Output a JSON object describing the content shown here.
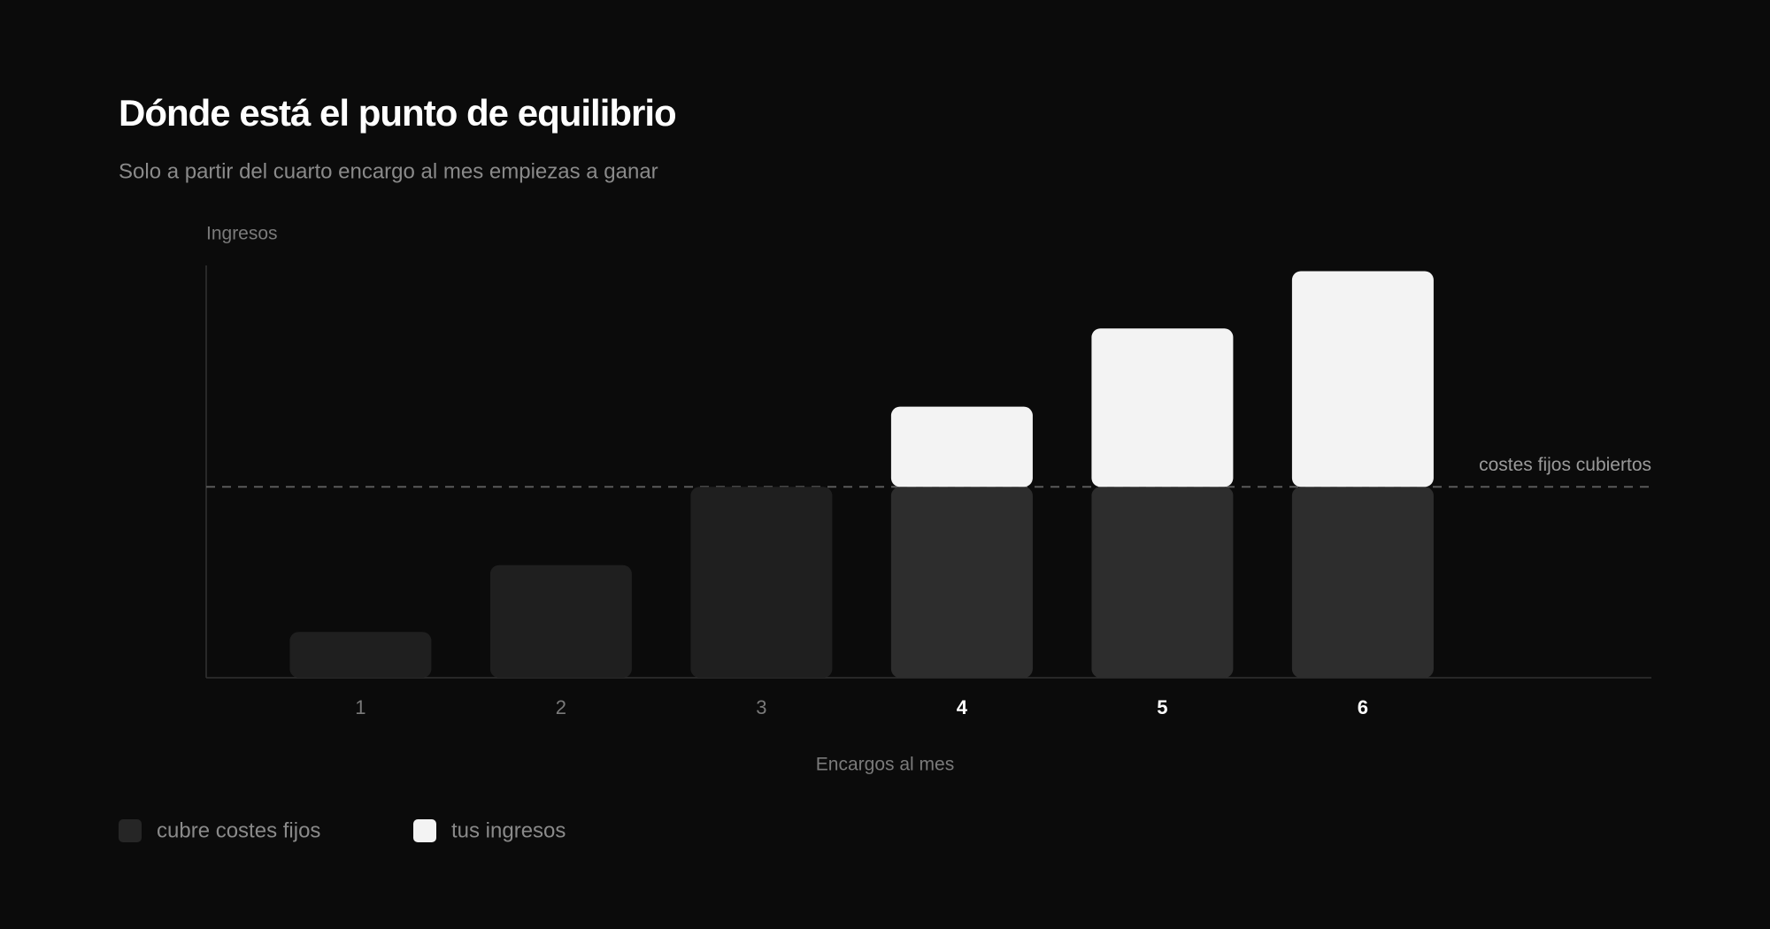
{
  "chart_data": {
    "type": "stacked_bar",
    "title": "Dónde está el punto de equilibrio",
    "subtitle": "Solo a partir del cuarto encargo al mes empiezas a ganar",
    "y_label": "Ingresos",
    "x_label": "Encargos al mes",
    "categories": [
      "1",
      "2",
      "3",
      "4",
      "5",
      "6"
    ],
    "series": [
      {
        "name": "cubre costes fijos",
        "color": "#262626",
        "colors": [
          "#1f1f1f",
          "#1f1f1f",
          "#1f1f1f",
          "#2d2d2d",
          "#2d2d2d",
          "#2d2d2d"
        ],
        "values": [
          24,
          59,
          100,
          100,
          100,
          100
        ]
      },
      {
        "name": "tus ingresos",
        "color": "#f3f3f3",
        "values": [
          null,
          null,
          null,
          42,
          83,
          113
        ]
      }
    ],
    "reference_line": {
      "value": 100,
      "label": "costes fijos cubiertos"
    },
    "ylim": [
      0,
      216
    ],
    "grid": false
  }
}
